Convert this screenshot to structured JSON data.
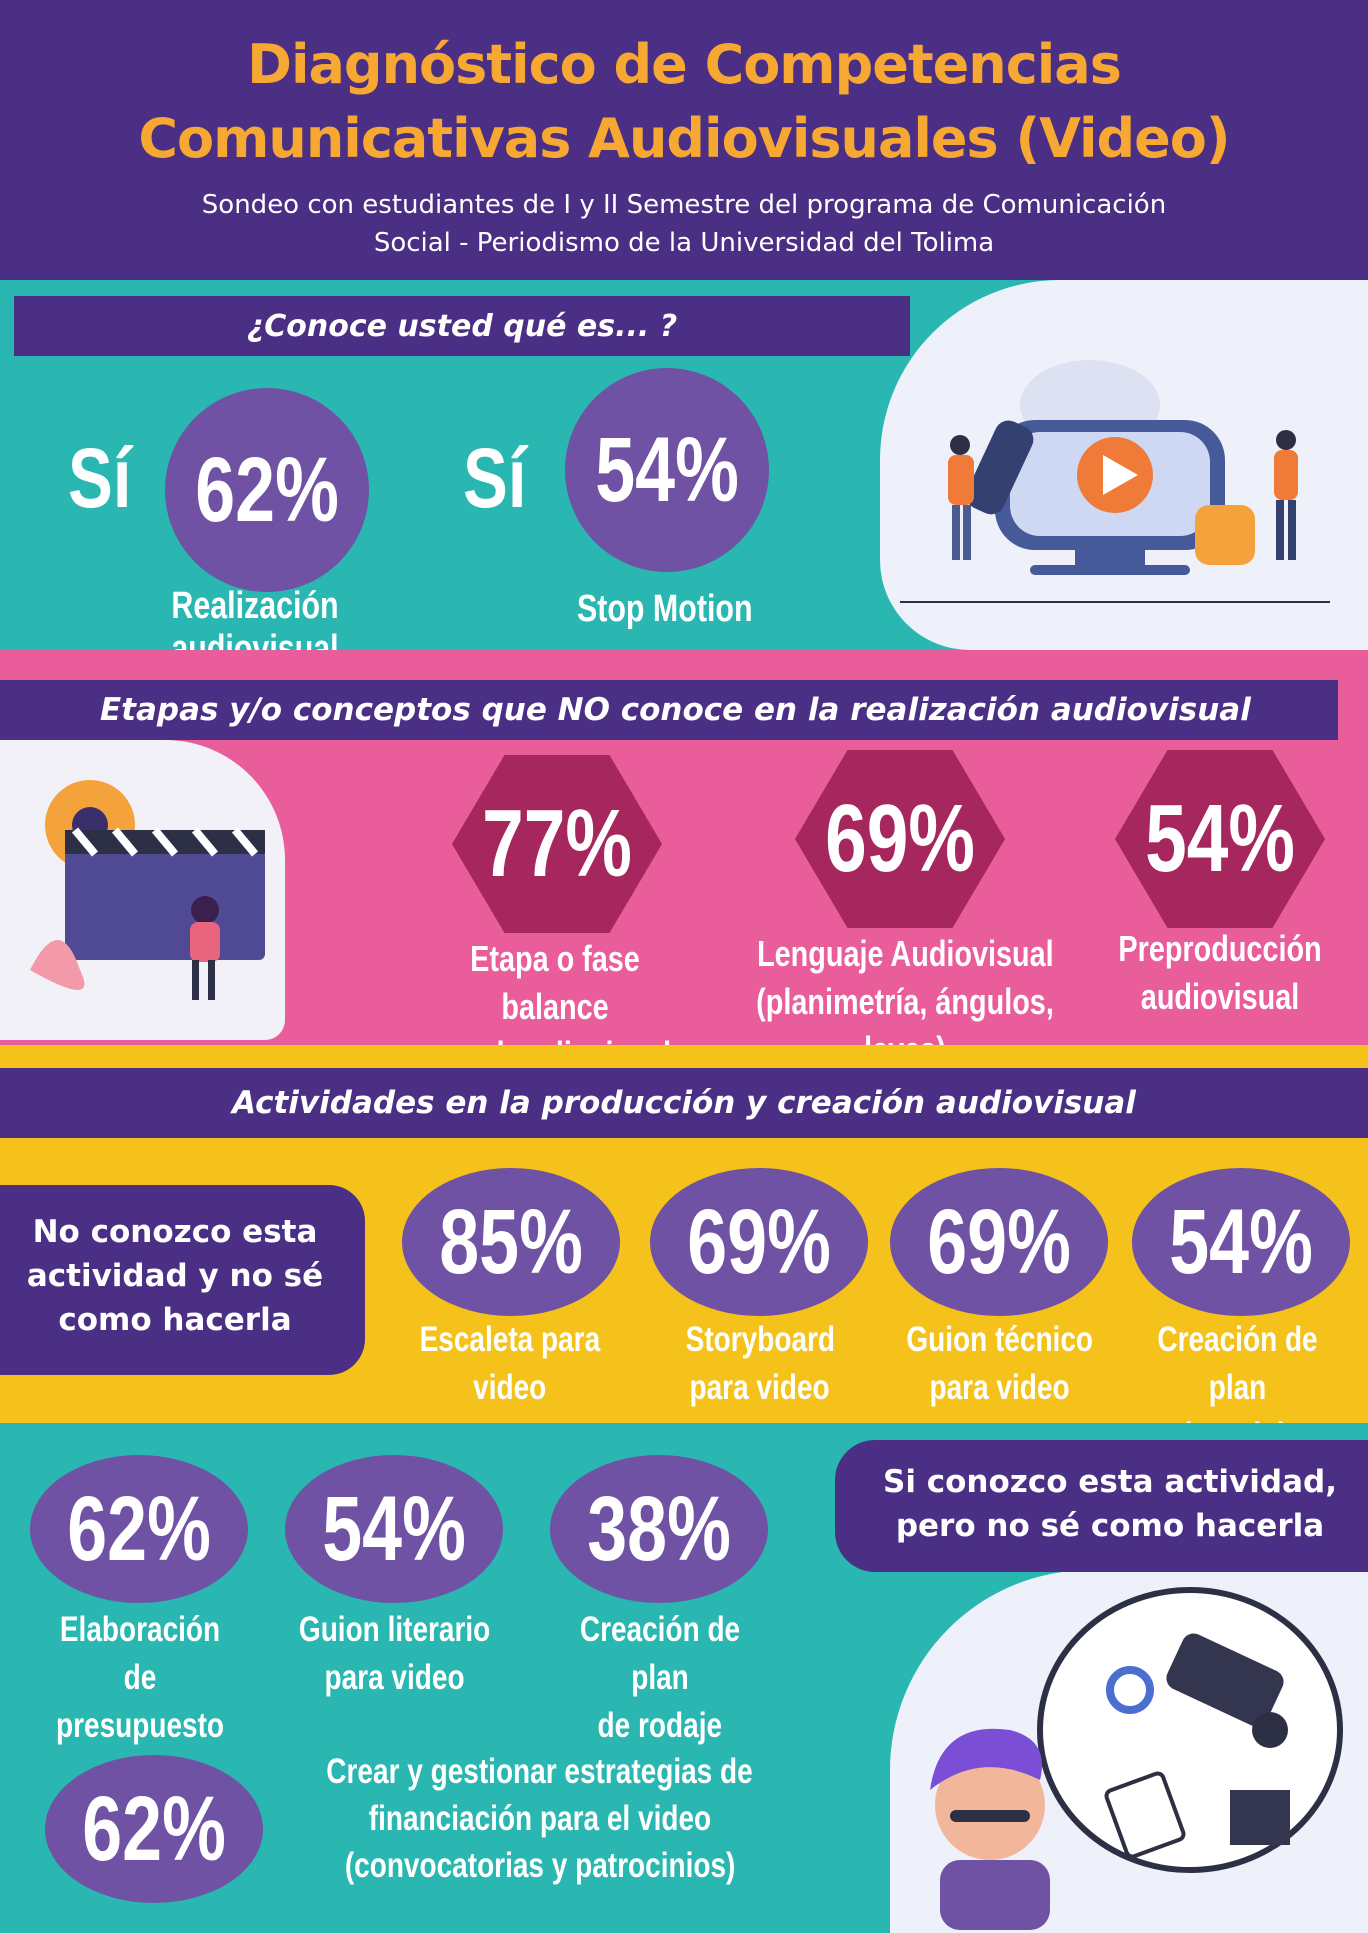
{
  "header": {
    "title_line1": "Diagnóstico de Competencias",
    "title_line2": "Comunicativas Audiovisuales (Video)",
    "subtitle_line1": "Sondeo con estudiantes de I y II Semestre del programa de Comunicación",
    "subtitle_line2": "Social - Periodismo de la Universidad del Tolima"
  },
  "knowledge": {
    "heading": "¿Conoce usted qué es... ?",
    "items": [
      {
        "answer": "Sí",
        "percent": "62%",
        "label": "Realización audiovisual"
      },
      {
        "answer": "Sí",
        "percent": "54%",
        "label": "Stop Motion"
      }
    ]
  },
  "unknown_stages": {
    "heading": "Etapas y/o conceptos que NO conoce en la realización audiovisual",
    "items": [
      {
        "percent": "77%",
        "label_line1": "Etapa o fase balance",
        "label_line2": "en el audiovisual"
      },
      {
        "percent": "69%",
        "label_line1": "Lenguaje Audiovisual",
        "label_line2": "(planimetría, ángulos, leyes)"
      },
      {
        "percent": "54%",
        "label_line1": "Preproducción",
        "label_line2": "audiovisual"
      }
    ]
  },
  "activities": {
    "heading": "Actividades en la producción y creación audiovisual",
    "dont_know": {
      "label": "No conozco esta actividad y no sé como hacerla",
      "items": [
        {
          "percent": "85%",
          "label_line1": "Escaleta para",
          "label_line2": "video"
        },
        {
          "percent": "69%",
          "label_line1": "Storyboard",
          "label_line2": "para video"
        },
        {
          "percent": "69%",
          "label_line1": "Guion técnico",
          "label_line2": "para video"
        },
        {
          "percent": "54%",
          "label_line1": "Creación de plan",
          "label_line2": "de rodaje"
        }
      ]
    },
    "know_but_cant": {
      "label": "Si conozco esta actividad, pero no sé como hacerla",
      "items": [
        {
          "percent": "62%",
          "label_line1": "Elaboración de",
          "label_line2": "presupuesto"
        },
        {
          "percent": "54%",
          "label_line1": "Guion literario",
          "label_line2": "para video"
        },
        {
          "percent": "38%",
          "label_line1": "Creación de plan",
          "label_line2": "de rodaje"
        }
      ],
      "extra": {
        "percent": "62%",
        "label_line1": "Crear y gestionar estrategias de",
        "label_line2": "financiación para el video",
        "label_line3": "(convocatorias y patrocinios)"
      }
    }
  },
  "colors": {
    "purple_dark": "#4a2f84",
    "purple_light": "#6f52a3",
    "orange_title": "#f6a833",
    "teal": "#2ab7b2",
    "pink": "#e95d9a",
    "magenta_hex": "#a5275e",
    "yellow": "#f5c21c"
  }
}
